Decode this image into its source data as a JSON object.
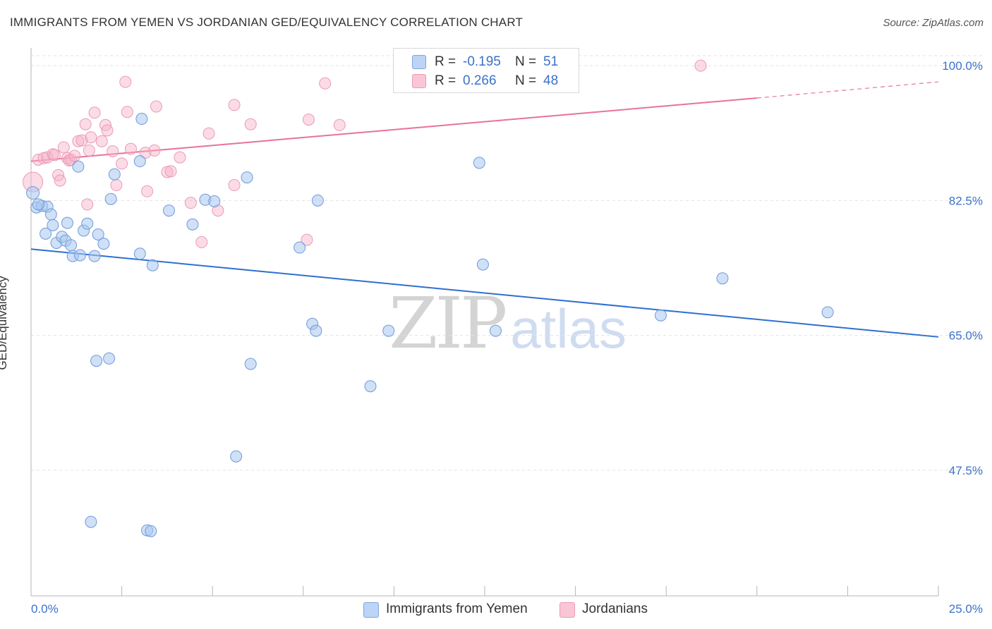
{
  "title": "IMMIGRANTS FROM YEMEN VS JORDANIAN GED/EQUIVALENCY CORRELATION CHART",
  "source": "Source: ZipAtlas.com",
  "watermark": {
    "zip": "ZIP",
    "atlas": "atlas"
  },
  "colors": {
    "blue": "#3b72c9",
    "blue_line": "#2f6fd0",
    "pink": "#e0608e",
    "pink_line": "#e8729a",
    "blue_fill": "#a8c6f0",
    "pink_fill": "#f6b2c8"
  },
  "legend": {
    "rows": [
      {
        "series": "Immigrants from Yemen",
        "r_label": "R =",
        "r_value": "-0.195",
        "n_label": "N =",
        "n_value": "51"
      },
      {
        "series": "Jordanians",
        "r_label": "R =",
        "r_value": "0.266",
        "n_label": "N =",
        "n_value": "48"
      }
    ]
  },
  "chart_data": {
    "type": "scatter",
    "title": "IMMIGRANTS FROM YEMEN VS JORDANIAN GED/EQUIVALENCY CORRELATION CHART",
    "xlabel": "",
    "ylabel": "GED/Equivalency",
    "xlim": [
      0,
      25
    ],
    "ylim": [
      31.2,
      102.3
    ],
    "x_tick_labels": [
      "0.0%",
      "25.0%"
    ],
    "y_ticks": [
      100.0,
      82.5,
      65.0,
      47.5
    ],
    "y_tick_labels": [
      "100.0%",
      "82.5%",
      "65.0%",
      "47.5%"
    ],
    "grid": true,
    "legend_position": "top-center",
    "series": [
      {
        "name": "Immigrants from Yemen",
        "color": "#3b72c9",
        "r": -0.195,
        "n": 51,
        "trend": {
          "x": [
            0,
            25
          ],
          "y": [
            76.2,
            64.8
          ]
        },
        "points": [
          {
            "x": 0.05,
            "y": 83.5
          },
          {
            "x": 0.15,
            "y": 81.6
          },
          {
            "x": 0.3,
            "y": 81.8
          },
          {
            "x": 0.45,
            "y": 81.7
          },
          {
            "x": 0.55,
            "y": 80.7
          },
          {
            "x": 0.4,
            "y": 78.2
          },
          {
            "x": 0.6,
            "y": 79.3
          },
          {
            "x": 0.7,
            "y": 77.0
          },
          {
            "x": 0.85,
            "y": 77.8
          },
          {
            "x": 0.95,
            "y": 77.3
          },
          {
            "x": 1.0,
            "y": 79.6
          },
          {
            "x": 1.1,
            "y": 76.7
          },
          {
            "x": 1.15,
            "y": 75.3
          },
          {
            "x": 1.35,
            "y": 75.4
          },
          {
            "x": 1.45,
            "y": 78.6
          },
          {
            "x": 1.55,
            "y": 79.5
          },
          {
            "x": 1.75,
            "y": 75.3
          },
          {
            "x": 1.85,
            "y": 78.1
          },
          {
            "x": 2.0,
            "y": 76.9
          },
          {
            "x": 1.3,
            "y": 86.9
          },
          {
            "x": 2.3,
            "y": 85.9
          },
          {
            "x": 2.2,
            "y": 82.7
          },
          {
            "x": 3.0,
            "y": 87.6
          },
          {
            "x": 3.05,
            "y": 93.1
          },
          {
            "x": 3.0,
            "y": 75.6
          },
          {
            "x": 3.35,
            "y": 74.1
          },
          {
            "x": 3.8,
            "y": 81.2
          },
          {
            "x": 4.45,
            "y": 79.4
          },
          {
            "x": 4.8,
            "y": 82.6
          },
          {
            "x": 5.05,
            "y": 82.4
          },
          {
            "x": 5.95,
            "y": 85.5
          },
          {
            "x": 7.4,
            "y": 76.4
          },
          {
            "x": 7.9,
            "y": 82.5
          },
          {
            "x": 7.75,
            "y": 66.5
          },
          {
            "x": 7.85,
            "y": 65.6
          },
          {
            "x": 9.85,
            "y": 65.6
          },
          {
            "x": 12.8,
            "y": 65.6
          },
          {
            "x": 12.35,
            "y": 87.4
          },
          {
            "x": 12.45,
            "y": 74.2
          },
          {
            "x": 17.35,
            "y": 67.6
          },
          {
            "x": 19.05,
            "y": 72.4
          },
          {
            "x": 21.95,
            "y": 68.0
          },
          {
            "x": 1.8,
            "y": 61.7
          },
          {
            "x": 2.15,
            "y": 62.0
          },
          {
            "x": 6.05,
            "y": 61.3
          },
          {
            "x": 9.35,
            "y": 58.4
          },
          {
            "x": 5.65,
            "y": 49.3
          },
          {
            "x": 1.65,
            "y": 40.8
          },
          {
            "x": 3.2,
            "y": 39.7
          },
          {
            "x": 3.3,
            "y": 39.6
          },
          {
            "x": 0.2,
            "y": 82.0
          }
        ]
      },
      {
        "name": "Jordanians",
        "color": "#e0608e",
        "r": 0.266,
        "n": 48,
        "trend": {
          "x": [
            0,
            20
          ],
          "y": [
            87.6,
            95.8
          ]
        },
        "trend_dashed": {
          "x": [
            20,
            25
          ],
          "y": [
            95.8,
            97.9
          ]
        },
        "points": [
          {
            "x": 0.05,
            "y": 84.9
          },
          {
            "x": 0.2,
            "y": 87.8
          },
          {
            "x": 0.35,
            "y": 88.0
          },
          {
            "x": 0.45,
            "y": 88.1
          },
          {
            "x": 0.6,
            "y": 88.5
          },
          {
            "x": 0.75,
            "y": 85.8
          },
          {
            "x": 0.65,
            "y": 88.4
          },
          {
            "x": 0.8,
            "y": 85.1
          },
          {
            "x": 0.9,
            "y": 89.4
          },
          {
            "x": 1.0,
            "y": 88.0
          },
          {
            "x": 1.05,
            "y": 87.7
          },
          {
            "x": 1.1,
            "y": 87.8
          },
          {
            "x": 1.2,
            "y": 88.3
          },
          {
            "x": 1.3,
            "y": 90.2
          },
          {
            "x": 1.4,
            "y": 90.3
          },
          {
            "x": 1.6,
            "y": 89.0
          },
          {
            "x": 1.75,
            "y": 93.9
          },
          {
            "x": 1.5,
            "y": 92.4
          },
          {
            "x": 1.55,
            "y": 82.0
          },
          {
            "x": 1.65,
            "y": 90.7
          },
          {
            "x": 1.95,
            "y": 90.2
          },
          {
            "x": 2.05,
            "y": 92.3
          },
          {
            "x": 2.1,
            "y": 91.6
          },
          {
            "x": 2.25,
            "y": 88.9
          },
          {
            "x": 2.35,
            "y": 84.5
          },
          {
            "x": 2.5,
            "y": 87.3
          },
          {
            "x": 2.6,
            "y": 97.9
          },
          {
            "x": 2.65,
            "y": 94.0
          },
          {
            "x": 2.75,
            "y": 89.2
          },
          {
            "x": 3.15,
            "y": 88.7
          },
          {
            "x": 3.2,
            "y": 83.7
          },
          {
            "x": 3.4,
            "y": 89.0
          },
          {
            "x": 3.45,
            "y": 94.7
          },
          {
            "x": 3.75,
            "y": 86.2
          },
          {
            "x": 3.85,
            "y": 86.3
          },
          {
            "x": 4.1,
            "y": 88.1
          },
          {
            "x": 4.4,
            "y": 82.2
          },
          {
            "x": 4.7,
            "y": 77.1
          },
          {
            "x": 4.9,
            "y": 91.2
          },
          {
            "x": 5.15,
            "y": 81.2
          },
          {
            "x": 5.6,
            "y": 84.5
          },
          {
            "x": 5.6,
            "y": 94.9
          },
          {
            "x": 6.05,
            "y": 92.4
          },
          {
            "x": 7.65,
            "y": 93.0
          },
          {
            "x": 7.6,
            "y": 77.4
          },
          {
            "x": 8.1,
            "y": 97.7
          },
          {
            "x": 8.5,
            "y": 92.3
          },
          {
            "x": 18.45,
            "y": 100.0
          }
        ]
      }
    ]
  }
}
